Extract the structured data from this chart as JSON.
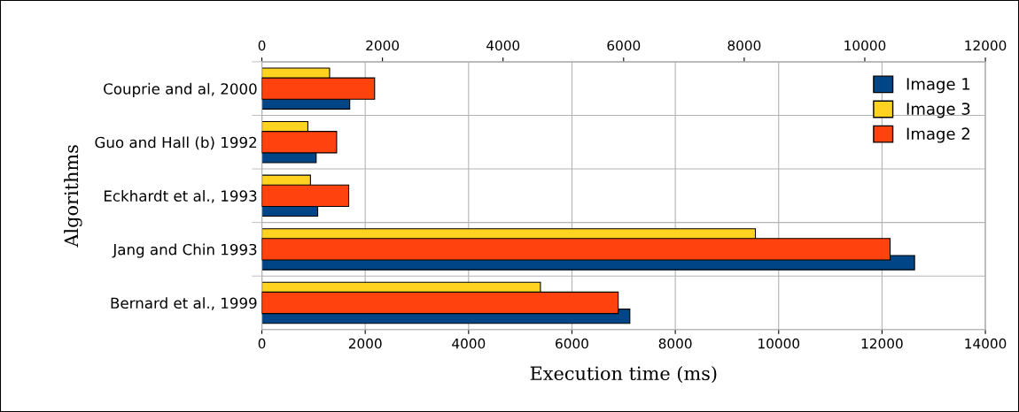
{
  "chart_data": {
    "type": "bar",
    "orientation": "horizontal",
    "categories": [
      "Couprie and al, 2000",
      "Guo and Hall (b) 1992",
      "Eckhardt et al., 1993",
      "Jang and Chin 1993",
      "Bernard et al., 1999"
    ],
    "series": [
      {
        "name": "Image 1",
        "color": "#004586",
        "values": [
          1700,
          1050,
          1080,
          12630,
          7120
        ]
      },
      {
        "name": "Image 3",
        "color": "#ffd320",
        "values": [
          1310,
          890,
          940,
          9550,
          5390
        ]
      },
      {
        "name": "Image 2",
        "color": "#ff420e",
        "axis": "x2",
        "values": [
          1870,
          1240,
          1440,
          10420,
          5910
        ]
      }
    ],
    "xlim": [
      0,
      14000
    ],
    "xticks": [
      0,
      2000,
      4000,
      6000,
      8000,
      10000,
      12000,
      14000
    ],
    "x2lim": [
      0,
      12000
    ],
    "x2ticks": [
      0,
      2000,
      4000,
      6000,
      8000,
      10000,
      12000
    ],
    "xlabel": "Execution time (ms)",
    "ylabel": "Algorithms",
    "grid": true,
    "legend": "top right"
  }
}
